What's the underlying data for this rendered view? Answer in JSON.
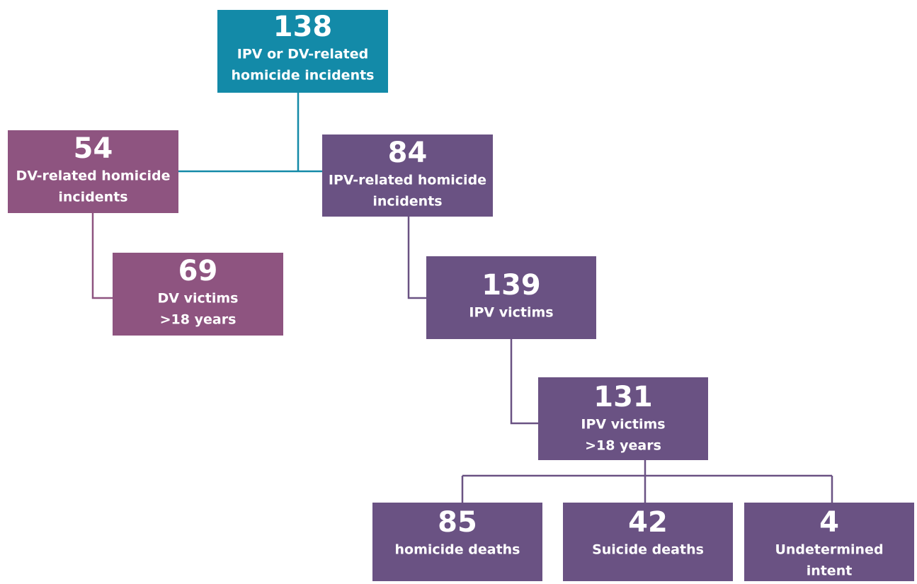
{
  "nodes": [
    {
      "value": 138,
      "lines": [
        "IPV or DV-related",
        "homicide incidents"
      ]
    },
    {
      "value": 54,
      "lines": [
        "DV-related homicide",
        "incidents"
      ]
    },
    {
      "value": 84,
      "lines": [
        "IPV-related homicide",
        "incidents"
      ]
    },
    {
      "value": 69,
      "lines": [
        "DV victims",
        ">18 years"
      ]
    },
    {
      "value": 139,
      "lines": [
        "IPV victims"
      ]
    },
    {
      "value": 131,
      "lines": [
        "IPV victims",
        ">18 years"
      ]
    },
    {
      "value": 85,
      "lines": [
        "homicide deaths"
      ]
    },
    {
      "value": 42,
      "lines": [
        "Suicide deaths"
      ]
    },
    {
      "value": 4,
      "lines": [
        "Undetermined",
        "intent"
      ]
    }
  ]
}
